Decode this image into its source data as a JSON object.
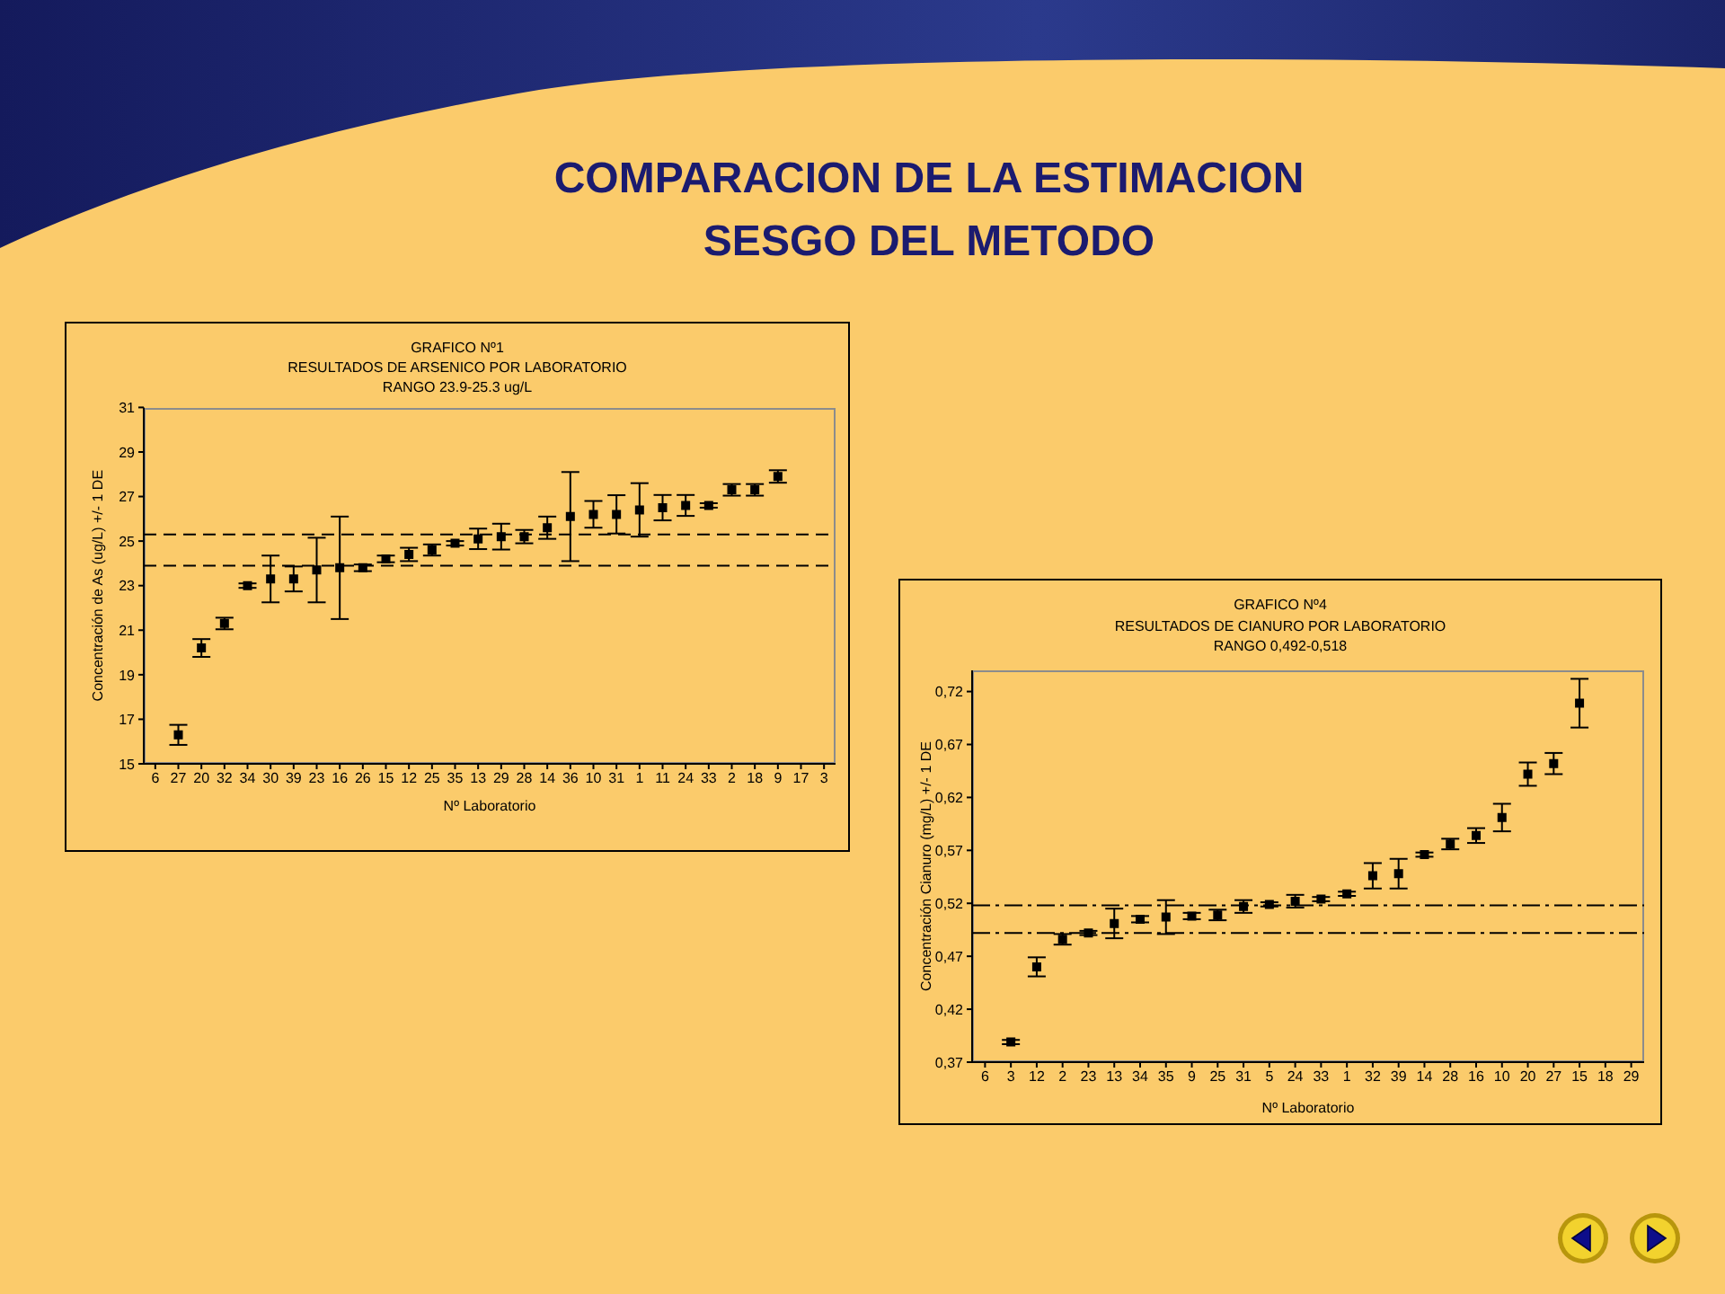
{
  "chart_data": [
    {
      "type": "other",
      "title": "COMPARACION DE LA ESTIMACION\nSESGO DEL METODO"
    },
    {
      "type": "scatter",
      "title": "GRAFICO Nº1",
      "subtitle": "RESULTADOS DE ARSENICO POR LABORATORIO\nRANGO 23.9-25.3 ug/L",
      "xlabel": "Nº Laboratorio",
      "ylabel": "Concentración de As (ug/L) +/- 1 DE",
      "categories": [
        "6",
        "27",
        "20",
        "32",
        "34",
        "30",
        "39",
        "23",
        "16",
        "26",
        "15",
        "12",
        "25",
        "35",
        "13",
        "29",
        "28",
        "14",
        "36",
        "10",
        "31",
        "1",
        "11",
        "24",
        "33",
        "2",
        "18",
        "9",
        "17",
        "3"
      ],
      "values": [
        null,
        16.3,
        20.2,
        21.3,
        23.0,
        23.3,
        23.3,
        23.7,
        23.8,
        23.8,
        24.2,
        24.4,
        24.6,
        24.9,
        25.1,
        25.2,
        25.2,
        25.6,
        26.1,
        26.2,
        26.2,
        26.4,
        26.5,
        26.6,
        26.6,
        27.3,
        27.3,
        27.9,
        null,
        null
      ],
      "errors": [
        null,
        0.45,
        0.4,
        0.26,
        0.1,
        1.05,
        0.56,
        1.45,
        2.3,
        0.15,
        0.15,
        0.3,
        0.25,
        0.1,
        0.46,
        0.58,
        0.3,
        0.5,
        2.0,
        0.6,
        0.86,
        1.2,
        0.57,
        0.47,
        0.1,
        0.26,
        0.26,
        0.28,
        null,
        null
      ],
      "color": "#000000",
      "marker": "square",
      "ylim": [
        15,
        31
      ],
      "yticks": [
        15,
        17,
        19,
        21,
        23,
        25,
        27,
        29,
        31
      ],
      "ref_lines": [
        {
          "axis": "y",
          "value": 25.3,
          "color": "#000000",
          "line_style": "dashed"
        },
        {
          "axis": "y",
          "value": 23.9,
          "color": "#000000",
          "line_style": "dashed"
        }
      ]
    },
    {
      "type": "scatter",
      "title": "GRAFICO Nº4",
      "subtitle": "RESULTADOS DE CIANURO POR LABORATORIO\nRANGO 0,492-0,518",
      "xlabel": "Nº Laboratorio",
      "ylabel": "Concentración Cianuro (mg/L) +/- 1 DE",
      "categories": [
        "6",
        "3",
        "12",
        "2",
        "23",
        "13",
        "34",
        "35",
        "9",
        "25",
        "31",
        "5",
        "24",
        "33",
        "1",
        "32",
        "39",
        "14",
        "28",
        "16",
        "10",
        "20",
        "27",
        "15",
        "18",
        "29"
      ],
      "values": [
        null,
        0.389,
        0.46,
        0.486,
        0.492,
        0.501,
        0.505,
        0.507,
        0.508,
        0.509,
        0.517,
        0.519,
        0.522,
        0.524,
        0.529,
        0.546,
        0.548,
        0.566,
        0.576,
        0.584,
        0.601,
        0.642,
        0.652,
        0.709,
        null,
        null
      ],
      "errors": [
        null,
        0.002,
        0.009,
        0.005,
        0.002,
        0.014,
        0.003,
        0.016,
        0.003,
        0.005,
        0.006,
        0.002,
        0.006,
        0.002,
        0.002,
        0.012,
        0.014,
        0.002,
        0.005,
        0.007,
        0.013,
        0.011,
        0.01,
        0.023,
        null,
        null
      ],
      "color": "#000000",
      "marker": "square",
      "ylim": [
        0.37,
        0.74
      ],
      "yticks": [
        {
          "value": 0.37,
          "label": "0,37"
        },
        {
          "value": 0.42,
          "label": "0,42"
        },
        {
          "value": 0.47,
          "label": "0,47"
        },
        {
          "value": 0.52,
          "label": "0,52"
        },
        {
          "value": 0.57,
          "label": "0,57"
        },
        {
          "value": 0.62,
          "label": "0,62"
        },
        {
          "value": 0.67,
          "label": "0,67"
        },
        {
          "value": 0.72,
          "label": "0,72"
        }
      ],
      "ref_lines": [
        {
          "axis": "y",
          "value": 0.518,
          "color": "#000000",
          "line_style": "dashdot"
        },
        {
          "axis": "y",
          "value": 0.492,
          "color": "#000000",
          "line_style": "dashdot"
        }
      ]
    }
  ]
}
